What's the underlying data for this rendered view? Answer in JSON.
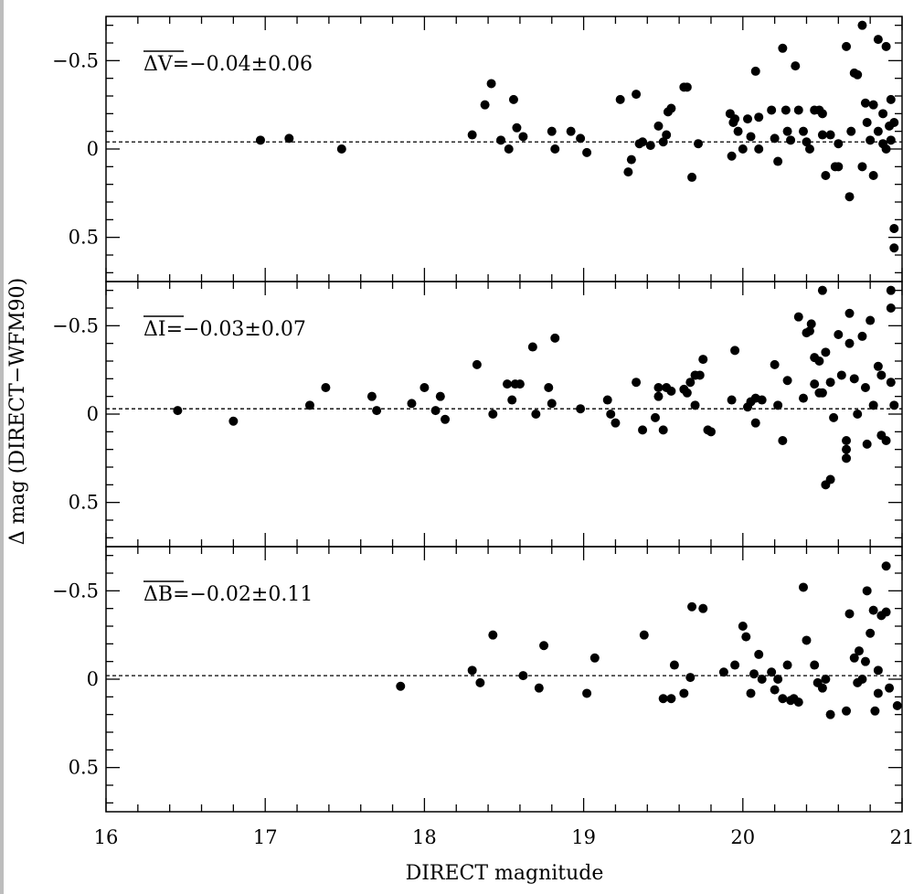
{
  "chart_data": {
    "type": "scatter",
    "xlabel": "DIRECT magnitude",
    "ylabel": "Δ mag (DIRECT−WFM90)",
    "xlim": [
      16,
      21
    ],
    "x_ticks": [
      "16",
      "17",
      "18",
      "19",
      "20",
      "21"
    ],
    "y_ticks": [
      "−0.5",
      "0",
      "0.5"
    ],
    "y_inverted": true,
    "shared_x_axis": true,
    "panels": [
      {
        "band": "V",
        "annotation_symbol": "ΔV",
        "annotation_text": "=−0.04±0.06",
        "mean": -0.04,
        "sigma": 0.06,
        "ylim": [
          -0.75,
          0.75
        ],
        "points": [
          [
            16.97,
            -0.05
          ],
          [
            17.15,
            -0.06
          ],
          [
            17.48,
            0.0
          ],
          [
            18.3,
            -0.08
          ],
          [
            18.38,
            -0.25
          ],
          [
            18.42,
            -0.37
          ],
          [
            18.48,
            -0.05
          ],
          [
            18.53,
            0.0
          ],
          [
            18.56,
            -0.28
          ],
          [
            18.58,
            -0.12
          ],
          [
            18.62,
            -0.07
          ],
          [
            18.8,
            -0.1
          ],
          [
            18.82,
            0.0
          ],
          [
            18.92,
            -0.1
          ],
          [
            18.98,
            -0.06
          ],
          [
            19.02,
            0.02
          ],
          [
            19.23,
            -0.28
          ],
          [
            19.28,
            0.13
          ],
          [
            19.3,
            0.06
          ],
          [
            19.33,
            -0.31
          ],
          [
            19.35,
            -0.03
          ],
          [
            19.37,
            -0.04
          ],
          [
            19.42,
            -0.02
          ],
          [
            19.47,
            -0.13
          ],
          [
            19.5,
            -0.04
          ],
          [
            19.52,
            -0.08
          ],
          [
            19.53,
            -0.21
          ],
          [
            19.55,
            -0.23
          ],
          [
            19.63,
            -0.35
          ],
          [
            19.65,
            -0.35
          ],
          [
            19.68,
            0.16
          ],
          [
            19.72,
            -0.03
          ],
          [
            19.92,
            -0.2
          ],
          [
            19.93,
            0.04
          ],
          [
            19.94,
            -0.15
          ],
          [
            19.95,
            -0.17
          ],
          [
            19.97,
            -0.1
          ],
          [
            20.0,
            0.0
          ],
          [
            20.03,
            -0.17
          ],
          [
            20.05,
            -0.07
          ],
          [
            20.08,
            -0.44
          ],
          [
            20.1,
            -0.18
          ],
          [
            20.1,
            0.0
          ],
          [
            20.18,
            -0.22
          ],
          [
            20.2,
            -0.06
          ],
          [
            20.22,
            0.07
          ],
          [
            20.25,
            -0.57
          ],
          [
            20.27,
            -0.22
          ],
          [
            20.28,
            -0.1
          ],
          [
            20.3,
            -0.05
          ],
          [
            20.33,
            -0.47
          ],
          [
            20.35,
            -0.22
          ],
          [
            20.38,
            -0.1
          ],
          [
            20.4,
            -0.04
          ],
          [
            20.42,
            0.0
          ],
          [
            20.45,
            -0.22
          ],
          [
            20.48,
            -0.22
          ],
          [
            20.5,
            -0.2
          ],
          [
            20.5,
            -0.08
          ],
          [
            20.52,
            0.15
          ],
          [
            20.55,
            -0.08
          ],
          [
            20.58,
            0.1
          ],
          [
            20.6,
            0.1
          ],
          [
            20.6,
            -0.03
          ],
          [
            20.65,
            -0.58
          ],
          [
            20.67,
            0.27
          ],
          [
            20.68,
            -0.1
          ],
          [
            20.7,
            -0.43
          ],
          [
            20.72,
            -0.42
          ],
          [
            20.75,
            -0.7
          ],
          [
            20.75,
            0.1
          ],
          [
            20.77,
            -0.26
          ],
          [
            20.78,
            -0.15
          ],
          [
            20.8,
            -0.05
          ],
          [
            20.82,
            -0.25
          ],
          [
            20.82,
            0.15
          ],
          [
            20.85,
            -0.62
          ],
          [
            20.85,
            -0.1
          ],
          [
            20.88,
            -0.2
          ],
          [
            20.88,
            -0.03
          ],
          [
            20.9,
            -0.58
          ],
          [
            20.9,
            0.0
          ],
          [
            20.92,
            -0.13
          ],
          [
            20.93,
            -0.28
          ],
          [
            20.93,
            -0.05
          ],
          [
            20.95,
            -0.15
          ],
          [
            20.95,
            0.45
          ],
          [
            20.95,
            0.56
          ]
        ]
      },
      {
        "band": "I",
        "annotation_symbol": "ΔI",
        "annotation_text": "=−0.03±0.07",
        "mean": -0.03,
        "sigma": 0.07,
        "ylim": [
          -0.75,
          0.75
        ],
        "points": [
          [
            16.45,
            -0.02
          ],
          [
            16.8,
            0.04
          ],
          [
            17.28,
            -0.05
          ],
          [
            17.38,
            -0.15
          ],
          [
            17.67,
            -0.1
          ],
          [
            17.7,
            -0.02
          ],
          [
            17.92,
            -0.06
          ],
          [
            18.0,
            -0.15
          ],
          [
            18.07,
            -0.02
          ],
          [
            18.1,
            -0.1
          ],
          [
            18.13,
            0.03
          ],
          [
            18.33,
            -0.28
          ],
          [
            18.43,
            0.0
          ],
          [
            18.52,
            -0.17
          ],
          [
            18.55,
            -0.08
          ],
          [
            18.57,
            -0.17
          ],
          [
            18.6,
            -0.17
          ],
          [
            18.68,
            -0.38
          ],
          [
            18.7,
            0.0
          ],
          [
            18.78,
            -0.15
          ],
          [
            18.8,
            -0.06
          ],
          [
            18.82,
            -0.43
          ],
          [
            18.98,
            -0.03
          ],
          [
            19.15,
            -0.08
          ],
          [
            19.17,
            0.0
          ],
          [
            19.2,
            0.05
          ],
          [
            19.33,
            -0.18
          ],
          [
            19.37,
            0.09
          ],
          [
            19.45,
            0.02
          ],
          [
            19.47,
            -0.15
          ],
          [
            19.47,
            -0.1
          ],
          [
            19.5,
            0.09
          ],
          [
            19.52,
            -0.15
          ],
          [
            19.55,
            -0.13
          ],
          [
            19.63,
            -0.14
          ],
          [
            19.65,
            -0.12
          ],
          [
            19.67,
            -0.18
          ],
          [
            19.7,
            -0.22
          ],
          [
            19.7,
            -0.05
          ],
          [
            19.73,
            -0.22
          ],
          [
            19.75,
            -0.31
          ],
          [
            19.78,
            0.09
          ],
          [
            19.8,
            0.1
          ],
          [
            19.93,
            -0.08
          ],
          [
            19.95,
            -0.36
          ],
          [
            20.03,
            -0.04
          ],
          [
            20.05,
            -0.07
          ],
          [
            20.08,
            -0.09
          ],
          [
            20.08,
            0.05
          ],
          [
            20.12,
            -0.08
          ],
          [
            20.2,
            -0.28
          ],
          [
            20.22,
            -0.05
          ],
          [
            20.25,
            0.15
          ],
          [
            20.28,
            -0.19
          ],
          [
            20.35,
            -0.55
          ],
          [
            20.38,
            -0.09
          ],
          [
            20.4,
            -0.46
          ],
          [
            20.42,
            -0.47
          ],
          [
            20.43,
            -0.51
          ],
          [
            20.45,
            -0.32
          ],
          [
            20.45,
            -0.17
          ],
          [
            20.48,
            -0.3
          ],
          [
            20.48,
            -0.12
          ],
          [
            20.5,
            -0.7
          ],
          [
            20.5,
            -0.12
          ],
          [
            20.52,
            -0.35
          ],
          [
            20.52,
            0.4
          ],
          [
            20.55,
            -0.18
          ],
          [
            20.55,
            0.37
          ],
          [
            20.57,
            0.02
          ],
          [
            20.6,
            -0.45
          ],
          [
            20.62,
            -0.22
          ],
          [
            20.65,
            0.15
          ],
          [
            20.65,
            0.2
          ],
          [
            20.65,
            0.25
          ],
          [
            20.67,
            -0.57
          ],
          [
            20.67,
            -0.4
          ],
          [
            20.7,
            -0.2
          ],
          [
            20.72,
            0.0
          ],
          [
            20.75,
            -0.44
          ],
          [
            20.77,
            -0.15
          ],
          [
            20.78,
            0.17
          ],
          [
            20.8,
            -0.53
          ],
          [
            20.82,
            -0.05
          ],
          [
            20.85,
            -0.27
          ],
          [
            20.87,
            -0.22
          ],
          [
            20.87,
            0.12
          ],
          [
            20.9,
            0.15
          ],
          [
            20.93,
            -0.6
          ],
          [
            20.93,
            -0.7
          ],
          [
            20.93,
            -0.18
          ],
          [
            20.95,
            -0.05
          ]
        ]
      },
      {
        "band": "B",
        "annotation_symbol": "ΔB",
        "annotation_text": "=−0.02±0.11",
        "mean": -0.02,
        "sigma": 0.11,
        "ylim": [
          -0.75,
          0.75
        ],
        "points": [
          [
            17.85,
            0.04
          ],
          [
            18.3,
            -0.05
          ],
          [
            18.35,
            0.02
          ],
          [
            18.43,
            -0.25
          ],
          [
            18.62,
            -0.02
          ],
          [
            18.72,
            0.05
          ],
          [
            18.75,
            -0.19
          ],
          [
            19.02,
            0.08
          ],
          [
            19.07,
            -0.12
          ],
          [
            19.38,
            -0.25
          ],
          [
            19.5,
            0.11
          ],
          [
            19.55,
            0.11
          ],
          [
            19.57,
            -0.08
          ],
          [
            19.63,
            0.08
          ],
          [
            19.67,
            -0.01
          ],
          [
            19.68,
            -0.41
          ],
          [
            19.75,
            -0.4
          ],
          [
            19.88,
            -0.04
          ],
          [
            19.95,
            -0.08
          ],
          [
            20.0,
            -0.3
          ],
          [
            20.02,
            -0.24
          ],
          [
            20.05,
            0.08
          ],
          [
            20.07,
            -0.03
          ],
          [
            20.1,
            -0.14
          ],
          [
            20.12,
            0.0
          ],
          [
            20.18,
            -0.04
          ],
          [
            20.2,
            0.06
          ],
          [
            20.22,
            0.0
          ],
          [
            20.25,
            0.11
          ],
          [
            20.28,
            -0.08
          ],
          [
            20.3,
            0.12
          ],
          [
            20.32,
            0.11
          ],
          [
            20.35,
            0.13
          ],
          [
            20.38,
            -0.52
          ],
          [
            20.4,
            -0.22
          ],
          [
            20.45,
            -0.08
          ],
          [
            20.47,
            0.02
          ],
          [
            20.5,
            0.05
          ],
          [
            20.52,
            0.0
          ],
          [
            20.55,
            0.2
          ],
          [
            20.65,
            0.18
          ],
          [
            20.67,
            -0.37
          ],
          [
            20.7,
            -0.12
          ],
          [
            20.72,
            0.02
          ],
          [
            20.73,
            -0.16
          ],
          [
            20.75,
            0.0
          ],
          [
            20.77,
            -0.1
          ],
          [
            20.78,
            -0.5
          ],
          [
            20.8,
            -0.26
          ],
          [
            20.82,
            -0.39
          ],
          [
            20.83,
            0.18
          ],
          [
            20.85,
            -0.05
          ],
          [
            20.85,
            0.08
          ],
          [
            20.87,
            -0.36
          ],
          [
            20.9,
            -0.38
          ],
          [
            20.9,
            -0.64
          ],
          [
            20.92,
            0.05
          ],
          [
            20.97,
            0.15
          ]
        ]
      }
    ]
  }
}
